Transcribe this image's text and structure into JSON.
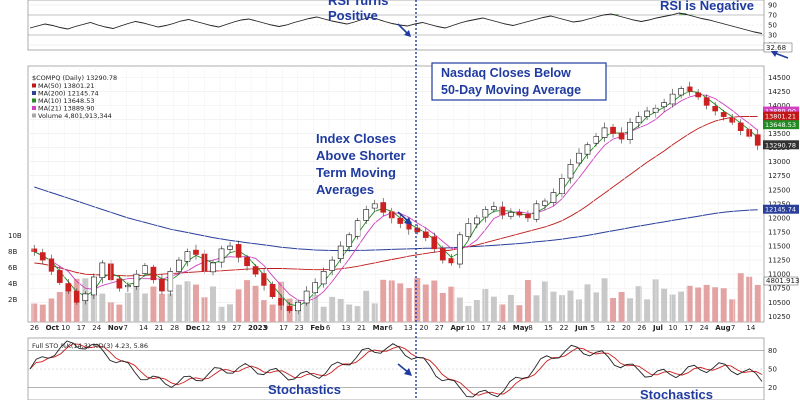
{
  "chart_data": {
    "type": "line",
    "title": "$COMPQ (Daily) 13290.78",
    "legend": [
      {
        "name": "MA(50) 13801.21",
        "color": "#c01818"
      },
      {
        "name": "MA(200) 12145.74",
        "color": "#2a3f9a"
      },
      {
        "name": "MA(10) 13648.53",
        "color": "#228b22"
      },
      {
        "name": "MA(21) 13889.90",
        "color": "#d040c0"
      },
      {
        "name": "Volume 4,801,913,344",
        "color": "#a8a8a8"
      }
    ],
    "x_tick_labels": [
      "26",
      "Oct",
      "10",
      "17",
      "24",
      "Nov",
      "7",
      "14",
      "21",
      "28",
      "Dec",
      "12",
      "19",
      "27",
      "2023",
      "9",
      "17",
      "23",
      "Feb",
      "6",
      "13",
      "21",
      "Mar",
      "6",
      "13",
      "20",
      "27",
      "Apr",
      "10",
      "17",
      "24",
      "May",
      "8",
      "15",
      "22",
      "Jun",
      "5",
      "12",
      "20",
      "26",
      "Jul",
      "10",
      "17",
      "24",
      "Aug",
      "7",
      "14"
    ],
    "price_axis": {
      "ticks": [
        "14500",
        "14250",
        "14000",
        "13750",
        "13500",
        "13250",
        "13000",
        "12750",
        "12500",
        "12250",
        "12000",
        "11750",
        "11500",
        "11250",
        "11000",
        "10750",
        "10500",
        "10250"
      ],
      "range": [
        10150,
        14700
      ],
      "value_labels": [
        {
          "text": "13889.90",
          "value": 13889.9,
          "color": "#d040c0"
        },
        {
          "text": "13801.21",
          "value": 13801.21,
          "color": "#c01818"
        },
        {
          "text": "13648.53",
          "value": 13648.53,
          "color": "#228b22"
        },
        {
          "text": "13290.78",
          "value": 13290.78,
          "color": "#333333"
        },
        {
          "text": "12145.74",
          "value": 12145.74,
          "color": "#2a3f9a"
        }
      ]
    },
    "volume_axis": {
      "ticks": [
        "10B",
        "8B",
        "6B",
        "4B",
        "2B"
      ],
      "last_label": "4801.913"
    },
    "rsi": {
      "ticks": [
        "90",
        "70",
        "50",
        "30",
        "10"
      ],
      "range": [
        0,
        100
      ],
      "last_label": "32.68",
      "values": [
        44,
        48,
        52,
        49,
        45,
        42,
        47,
        51,
        55,
        50,
        46,
        43,
        48,
        53,
        57,
        54,
        50,
        46,
        49,
        53,
        58,
        61,
        57,
        53,
        49,
        46,
        51,
        56,
        60,
        62,
        58,
        54,
        50,
        47,
        50,
        55,
        59,
        63,
        66,
        62,
        58,
        55,
        52,
        56,
        61,
        65,
        62,
        57,
        53,
        50,
        48,
        52,
        55,
        51,
        47,
        44,
        49,
        54,
        58,
        61,
        64,
        60,
        56,
        52,
        49,
        53,
        57,
        61,
        65,
        68,
        64,
        60,
        56,
        58,
        62,
        66,
        70,
        72,
        68,
        64,
        60,
        57,
        60,
        64,
        67,
        70,
        74,
        71,
        67,
        63,
        60,
        56,
        52,
        48,
        44,
        40,
        36,
        33
      ]
    },
    "stochastics": {
      "legend": "Full STO %K(14,3) %D(3) 4.23, 5.86",
      "ticks": [
        "80",
        "50",
        "20"
      ],
      "range": [
        0,
        100
      ]
    },
    "price_series": {
      "close": [
        11400,
        11250,
        11050,
        10850,
        10700,
        10500,
        10650,
        10950,
        11200,
        10900,
        10750,
        10800,
        11000,
        11150,
        10900,
        10700,
        11050,
        11250,
        11400,
        11350,
        11050,
        11200,
        11450,
        11500,
        11300,
        11150,
        11000,
        10800,
        10600,
        10450,
        10350,
        10500,
        10700,
        10850,
        11050,
        11250,
        11500,
        11700,
        11950,
        12150,
        12250,
        12100,
        12000,
        11900,
        11800,
        11750,
        11650,
        11450,
        11250,
        11200,
        11700,
        11900,
        12000,
        12150,
        12200,
        12050,
        12100,
        12050,
        12000,
        12250,
        12300,
        12450,
        12700,
        12950,
        13150,
        13300,
        13450,
        13600,
        13500,
        13400,
        13700,
        13800,
        13900,
        13950,
        14050,
        14200,
        14300,
        14250,
        14150,
        14000,
        13900,
        13800,
        13700,
        13550,
        13450,
        13290
      ],
      "ma50": [
        11200,
        11180,
        11150,
        11110,
        11070,
        11030,
        11000,
        10990,
        10985,
        10980,
        10975,
        10970,
        10975,
        10980,
        10990,
        11000,
        11010,
        11020,
        11030,
        11040,
        11050,
        11055,
        11060,
        11070,
        11080,
        11090,
        11095,
        11100,
        11100,
        11100,
        11095,
        11090,
        11085,
        11080,
        11080,
        11085,
        11095,
        11115,
        11140,
        11170,
        11200,
        11230,
        11260,
        11290,
        11320,
        11345,
        11370,
        11390,
        11410,
        11430,
        11460,
        11490,
        11520,
        11560,
        11600,
        11640,
        11680,
        11720,
        11760,
        11800,
        11840,
        11890,
        11950,
        12030,
        12120,
        12220,
        12330,
        12440,
        12550,
        12660,
        12770,
        12880,
        12990,
        13090,
        13190,
        13300,
        13400,
        13500,
        13590,
        13660,
        13720,
        13760,
        13790,
        13800,
        13805,
        13801
      ],
      "ma200": [
        12550,
        12500,
        12450,
        12400,
        12350,
        12300,
        12250,
        12200,
        12150,
        12100,
        12050,
        12000,
        11960,
        11920,
        11880,
        11840,
        11800,
        11770,
        11740,
        11710,
        11680,
        11650,
        11625,
        11600,
        11580,
        11560,
        11540,
        11520,
        11500,
        11480,
        11465,
        11450,
        11440,
        11430,
        11425,
        11420,
        11420,
        11420,
        11422,
        11425,
        11430,
        11435,
        11440,
        11445,
        11450,
        11455,
        11460,
        11462,
        11465,
        11470,
        11478,
        11486,
        11494,
        11502,
        11512,
        11522,
        11534,
        11546,
        11560,
        11575,
        11590,
        11606,
        11624,
        11644,
        11666,
        11690,
        11716,
        11744,
        11772,
        11800,
        11828,
        11855,
        11880,
        11905,
        11930,
        11955,
        11980,
        12005,
        12030,
        12055,
        12080,
        12100,
        12115,
        12128,
        12138,
        12146
      ]
    },
    "annotations": [
      {
        "text": "RSI Turns"
      },
      {
        "text": "Positive"
      },
      {
        "text": "RSI is Negative"
      },
      {
        "text": "Nasdaq Closes Below"
      },
      {
        "text": "50-Day Moving Average"
      },
      {
        "text": "Index Closes"
      },
      {
        "text": "Above Shorter"
      },
      {
        "text": "Term Moving"
      },
      {
        "text": "Averages"
      },
      {
        "text": "Stochastics"
      },
      {
        "text": "Stochastics"
      }
    ]
  }
}
